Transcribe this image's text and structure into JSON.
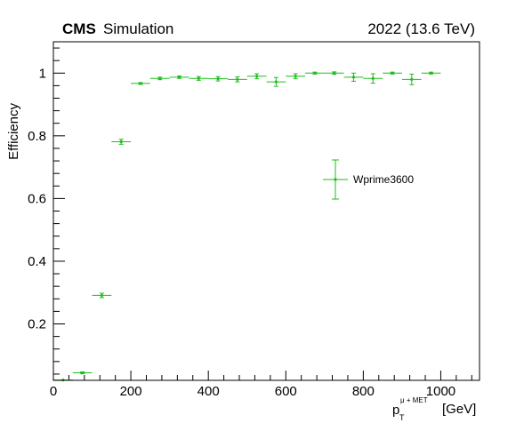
{
  "header": {
    "experiment": "CMS",
    "label": "Simulation",
    "energy": "2022 (13.6 TeV)"
  },
  "chart_data": {
    "type": "scatter",
    "xlabel_main": "p",
    "xlabel_sub": "T",
    "xlabel_sup": "μ + MET",
    "xlabel_unit": "[GeV]",
    "ylabel": "Efficiency",
    "xlim": [
      0,
      1100
    ],
    "ylim": [
      0.02,
      1.1
    ],
    "x_ticks": [
      0,
      200,
      400,
      600,
      800,
      1000
    ],
    "x_tick_labels": [
      "0",
      "200",
      "400",
      "600",
      "800",
      "1000"
    ],
    "y_ticks": [
      0.2,
      0.4,
      0.6,
      0.8,
      1.0
    ],
    "y_tick_labels": [
      "0.2",
      "0.4",
      "0.6",
      "0.8",
      "1"
    ],
    "legend_placement": "center-right",
    "series": [
      {
        "name": "Wprime3600",
        "color": "#1fbd1f",
        "bin_width": 50,
        "x": [
          25,
          75,
          125,
          175,
          225,
          275,
          325,
          375,
          425,
          475,
          525,
          575,
          625,
          675,
          725,
          775,
          825,
          875,
          925,
          975
        ],
        "y": [
          0.021,
          0.044,
          0.291,
          0.781,
          0.967,
          0.983,
          0.987,
          0.983,
          0.982,
          0.98,
          0.99,
          0.972,
          0.99,
          1.0,
          1.0,
          0.987,
          0.983,
          1.0,
          0.98,
          1.0
        ],
        "yerr": [
          0.002,
          0.003,
          0.007,
          0.008,
          0.003,
          0.004,
          0.004,
          0.006,
          0.007,
          0.008,
          0.008,
          0.014,
          0.008,
          0.003,
          0.004,
          0.013,
          0.015,
          0.003,
          0.017,
          0.003
        ]
      }
    ]
  }
}
